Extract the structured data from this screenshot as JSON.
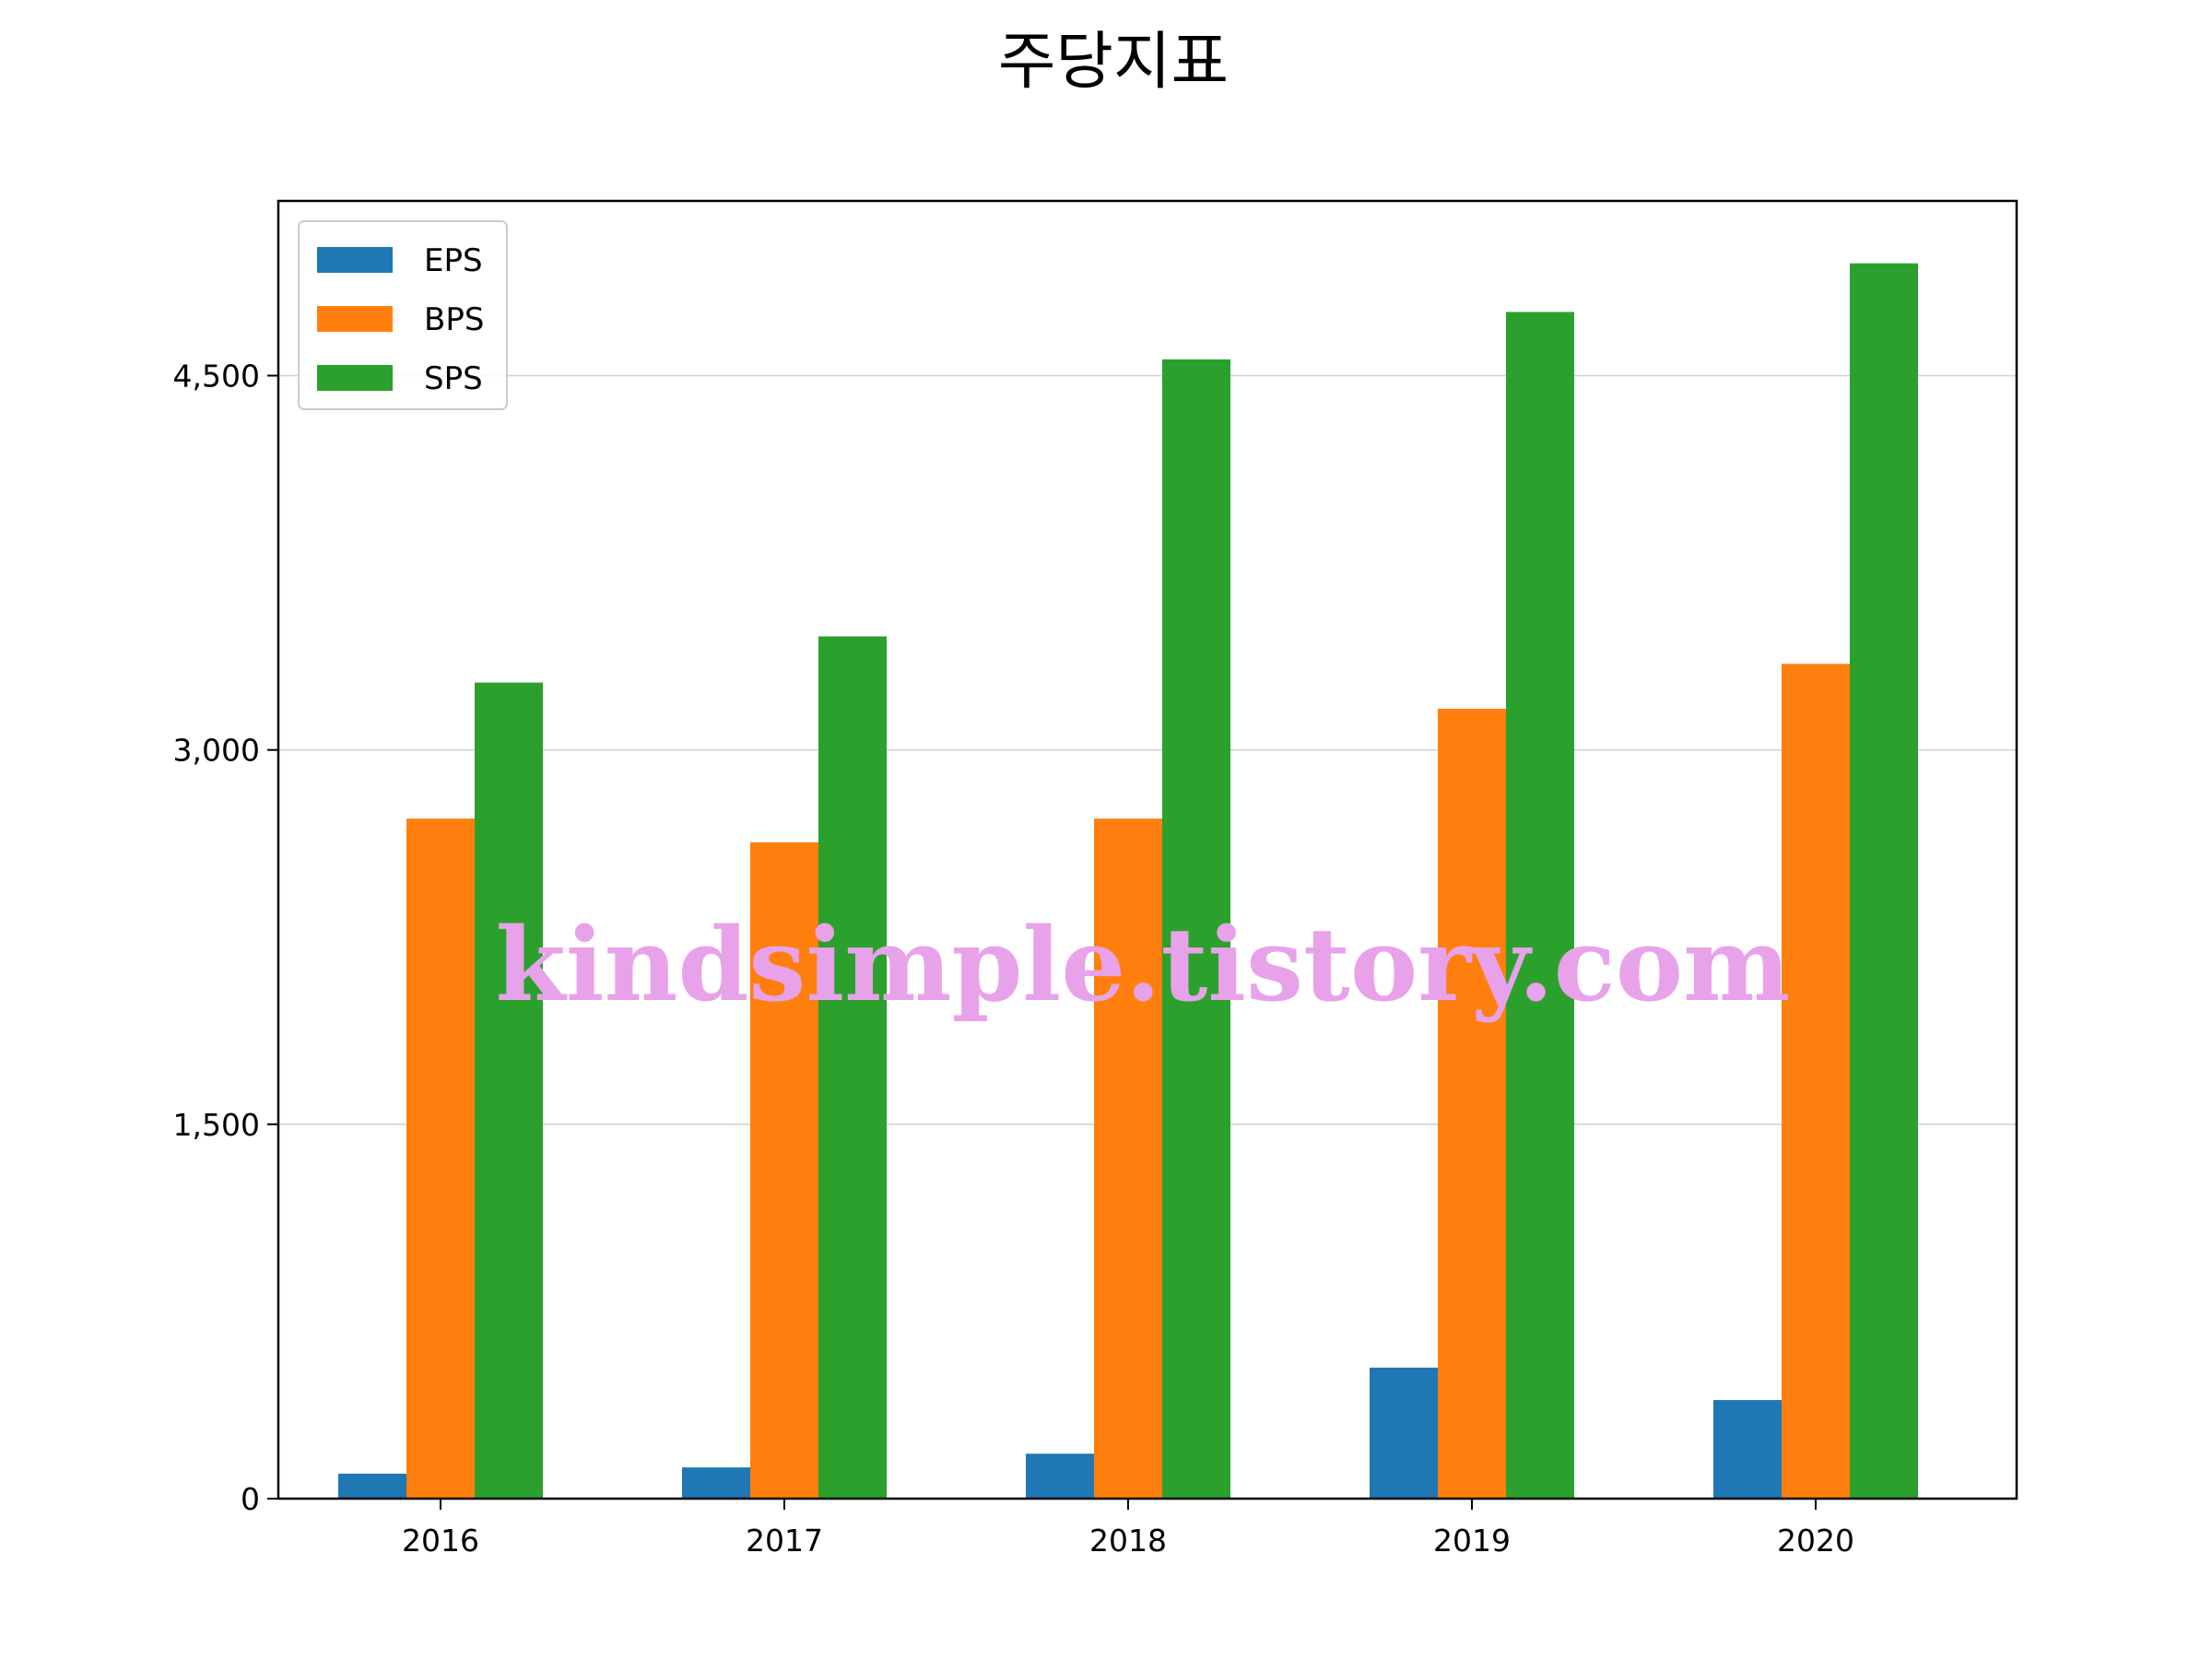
{
  "chart_data": {
    "type": "bar",
    "title": "주당지표",
    "xlabel": "",
    "ylabel": "",
    "categories": [
      "2016",
      "2017",
      "2018",
      "2019",
      "2020"
    ],
    "series": [
      {
        "name": "EPS",
        "color": "#1f77b4",
        "values": [
          100,
          125,
          180,
          525,
          395
        ]
      },
      {
        "name": "BPS",
        "color": "#ff7f0e",
        "values": [
          2725,
          2630,
          2725,
          3165,
          3345
        ]
      },
      {
        "name": "SPS",
        "color": "#2ca02c",
        "values": [
          3270,
          3455,
          4565,
          4755,
          4950
        ]
      }
    ],
    "ylim": [
      0,
      5200
    ],
    "yticks": [
      0,
      1500,
      3000,
      4500
    ],
    "ytick_labels": [
      "0",
      "1,500",
      "3,000",
      "4,500"
    ],
    "grid": "y",
    "legend_position": "upper left"
  },
  "watermark": "kindsimple.tistory.com"
}
